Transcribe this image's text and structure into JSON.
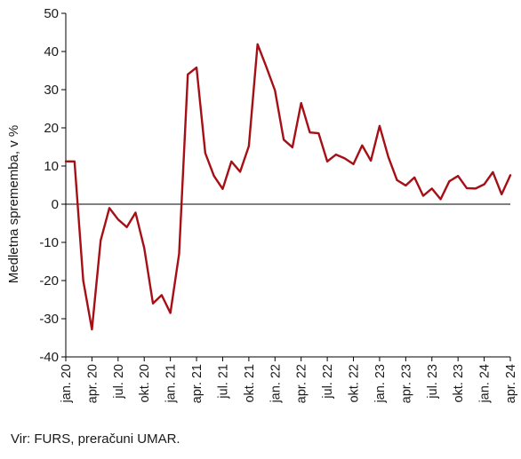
{
  "chart_data": {
    "type": "line",
    "ylabel": "Medletna sprememba, v %",
    "ylim": [
      -40,
      50
    ],
    "y_ticks": [
      50,
      40,
      30,
      20,
      10,
      0,
      -10,
      -20,
      -30,
      -40
    ],
    "y_tick_labels": [
      "50",
      "40",
      "30",
      "20",
      "10",
      "0",
      "-10",
      "-20",
      "-30",
      "-40"
    ],
    "x_tick_labels": [
      "jan. 20",
      "apr. 20",
      "jul. 20",
      "okt. 20",
      "jan. 21",
      "apr. 21",
      "jul. 21",
      "okt. 21",
      "jan. 22",
      "apr. 22",
      "jul. 22",
      "okt. 22",
      "jan. 23",
      "apr. 23",
      "jul. 23",
      "okt. 23",
      "jan. 24",
      "apr. 24"
    ],
    "x_tick_months": [
      "2020-01",
      "2020-04",
      "2020-07",
      "2020-10",
      "2021-01",
      "2021-04",
      "2021-07",
      "2021-10",
      "2022-01",
      "2022-04",
      "2022-07",
      "2022-10",
      "2023-01",
      "2023-04",
      "2023-07",
      "2023-10",
      "2024-01",
      "2024-04"
    ],
    "grid": false,
    "zero_line": true,
    "line_color": "#a50f15",
    "series": [
      {
        "x": [
          "2020-01",
          "2020-02",
          "2020-03",
          "2020-04",
          "2020-05",
          "2020-06",
          "2020-07",
          "2020-08",
          "2020-09",
          "2020-10",
          "2020-11",
          "2020-12",
          "2021-01",
          "2021-02",
          "2021-03",
          "2021-04",
          "2021-05",
          "2021-06",
          "2021-07",
          "2021-08",
          "2021-09",
          "2021-10",
          "2021-11",
          "2021-12",
          "2022-01",
          "2022-02",
          "2022-03",
          "2022-04",
          "2022-05",
          "2022-06",
          "2022-07",
          "2022-08",
          "2022-09",
          "2022-10",
          "2022-11",
          "2022-12",
          "2023-01",
          "2023-02",
          "2023-03",
          "2023-04",
          "2023-05",
          "2023-06",
          "2023-07",
          "2023-08",
          "2023-09",
          "2023-10",
          "2023-11",
          "2023-12",
          "2024-01",
          "2024-02",
          "2024-03",
          "2024-04"
        ],
        "values": [
          11.2,
          11.2,
          -20,
          -32.8,
          -9.5,
          -1,
          -4,
          -6,
          -2.2,
          -11.5,
          -26,
          -23.8,
          -28.5,
          -13,
          34,
          35.8,
          13.4,
          7.4,
          4,
          11.2,
          8.5,
          15.2,
          41.9,
          36,
          29.8,
          16.9,
          14.9,
          26.5,
          18.8,
          18.6,
          11.2,
          13,
          12,
          10.5,
          15.4,
          11.4,
          20.5,
          12.4,
          6.3,
          4.9,
          7,
          2.2,
          4.1,
          1.3,
          6,
          7.4,
          4.2,
          4.1,
          5.2,
          8.4,
          2.6,
          7.6
        ]
      }
    ]
  },
  "source_note": "Vir: FURS, preračuni UMAR."
}
